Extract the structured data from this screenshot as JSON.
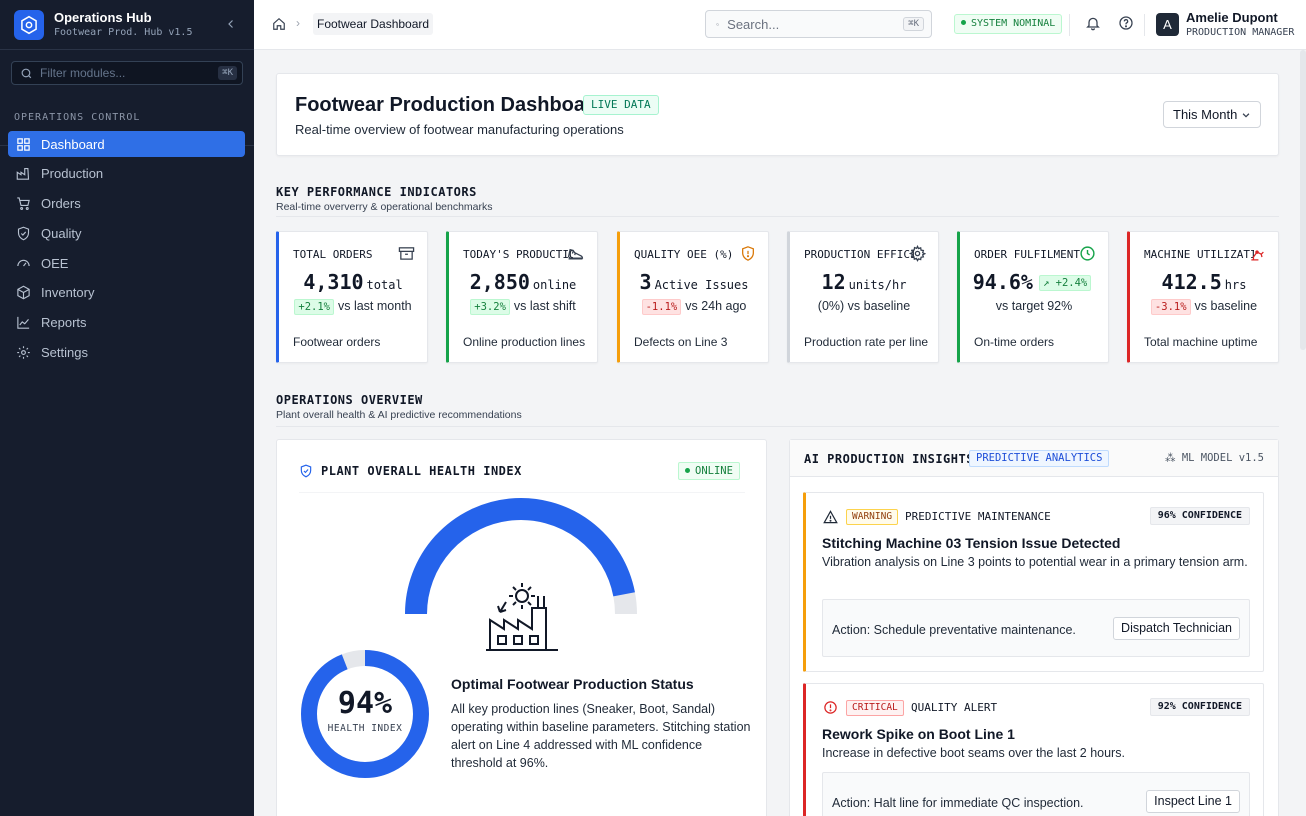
{
  "app": {
    "title": "Operations Hub",
    "subtitle": "Footwear Prod. Hub v1.5"
  },
  "sidebar": {
    "filter_placeholder": "Filter modules...",
    "filter_shortcut": "⌘K",
    "section_label": "OPERATIONS CONTROL",
    "items": [
      {
        "label": "Dashboard",
        "icon": "grid-icon",
        "active": true
      },
      {
        "label": "Production",
        "icon": "factory-icon"
      },
      {
        "label": "Orders",
        "icon": "cart-icon"
      },
      {
        "label": "Quality",
        "icon": "shield-icon"
      },
      {
        "label": "OEE",
        "icon": "gauge-icon"
      },
      {
        "label": "Inventory",
        "icon": "box-icon"
      },
      {
        "label": "Reports",
        "icon": "line-chart-icon"
      },
      {
        "label": "Settings",
        "icon": "gear-icon"
      }
    ]
  },
  "topbar": {
    "breadcrumb": "Footwear Dashboard",
    "search_placeholder": "Search...",
    "search_shortcut": "⌘K",
    "system_status": "SYSTEM NOMINAL",
    "user": {
      "initial": "A",
      "name": "Amelie Dupont",
      "role": "PRODUCTION MANAGER"
    }
  },
  "header": {
    "title": "Footwear Production Dashboard",
    "badge": "LIVE DATA",
    "subtitle": "Real-time overview of footwear manufacturing operations",
    "period": "This Month"
  },
  "kpi_section": {
    "title": "KEY PERFORMANCE INDICATORS",
    "subtitle": "Real-time oververry & operational benchmarks"
  },
  "kpis": [
    {
      "label": "TOTAL ORDERS",
      "value": "4,310",
      "unit": "total",
      "delta": "+2.1%",
      "delta_dir": "up",
      "compare": "vs last month",
      "footer": "Footwear orders",
      "color": "#2563eb",
      "icon": "archive-icon"
    },
    {
      "label": "TODAY'S PRODUCTION",
      "value": "2,850",
      "unit": "online",
      "delta": "+3.2%",
      "delta_dir": "up",
      "compare": "vs last shift",
      "footer": "Online production lines",
      "color": "#16a34a",
      "icon": "shoe-icon"
    },
    {
      "label": "QUALITY OEE (%)",
      "value": "3",
      "unit": "Active Issues",
      "delta": "-1.1%",
      "delta_dir": "down",
      "compare": "vs 24h ago",
      "footer": "Defects on Line 3",
      "color": "#f59e0b",
      "icon": "shield-alert-icon"
    },
    {
      "label": "PRODUCTION EFFICIENCY",
      "value": "12",
      "unit": "units/hr",
      "delta": "(0%)",
      "delta_dir": "none",
      "compare": "vs baseline",
      "footer": "Production rate per line",
      "color": "#9ca3af",
      "icon": "gear-icon"
    },
    {
      "label": "ORDER FULFILMENT",
      "value": "94.6%",
      "unit": "",
      "delta": "+2.4%",
      "delta_dir": "up",
      "compare": "vs target 92%",
      "footer": "On-time orders",
      "color": "#16a34a",
      "icon": "clock-icon"
    },
    {
      "label": "MACHINE UTILIZATION",
      "value": "412.5",
      "unit": "hrs",
      "delta": "-3.1%",
      "delta_dir": "down",
      "compare": "vs baseline",
      "footer": "Total machine uptime",
      "color": "#dc2626",
      "icon": "robot-arm-icon"
    }
  ],
  "ops_section": {
    "title": "OPERATIONS OVERVIEW",
    "subtitle": "Plant overall health & AI predictive recommendations"
  },
  "health": {
    "title": "PLANT OVERALL HEALTH INDEX",
    "status": "ONLINE",
    "percent_text": "94%",
    "percent": 94,
    "index_label": "HEALTH INDEX",
    "status_title": "Optimal Footwear Production Status",
    "status_body": "All key production lines (Sneaker, Boot, Sandal) operating within baseline parameters. Stitching station alert on Line 4 addressed with ML confidence threshold at 96%."
  },
  "ai": {
    "title": "AI PRODUCTION INSIGHTS",
    "badge": "PREDICTIVE ANALYTICS",
    "model": "ML MODEL v1.5",
    "insights": [
      {
        "severity": "WARNING",
        "type": "PREDICTIVE MAINTENANCE",
        "confidence": "96% CONFIDENCE",
        "title": "Stitching Machine 03 Tension Issue Detected",
        "body": "Vibration analysis on Line 3 points to potential wear in a primary tension arm.",
        "action": "Action: Schedule preventative maintenance.",
        "button": "Dispatch Technician"
      },
      {
        "severity": "CRITICAL",
        "type": "QUALITY ALERT",
        "confidence": "92% CONFIDENCE",
        "title": "Rework Spike on Boot Line 1",
        "body": "Increase in defective boot seams over the last 2 hours.",
        "action": "Action: Halt line for immediate QC inspection.",
        "button": "Inspect Line 1"
      }
    ]
  },
  "colors": {
    "accent": "#2f6fe6",
    "sidebar_bg": "#161d2d",
    "gauge": "#2563eb",
    "success": "#16a34a",
    "warning": "#f59e0b",
    "danger": "#dc2626"
  }
}
